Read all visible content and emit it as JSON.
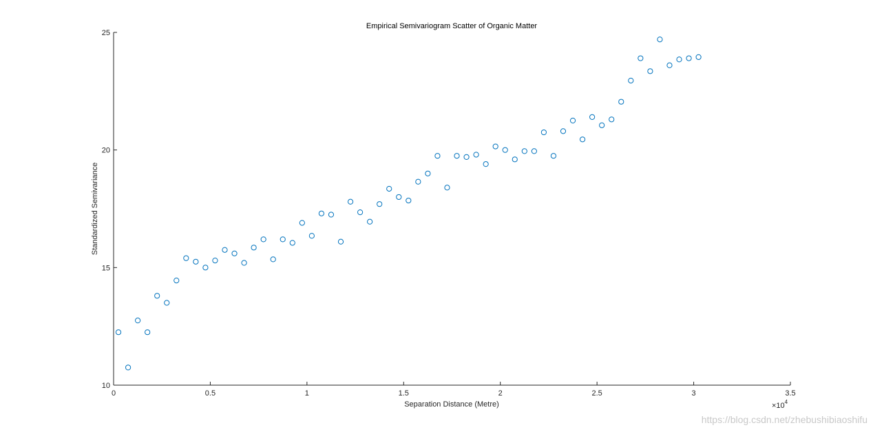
{
  "chart_data": {
    "type": "scatter",
    "title": "Empirical Semivariogram Scatter of Organic Matter",
    "xlabel": "Separation Distance (Metre)",
    "ylabel": "Standardized Semivariance",
    "xlim": [
      0,
      35000
    ],
    "ylim": [
      10,
      25
    ],
    "x_ticks": [
      0,
      5000,
      10000,
      15000,
      20000,
      25000,
      30000,
      35000
    ],
    "x_tick_labels": [
      "0",
      "0.5",
      "1",
      "1.5",
      "2",
      "2.5",
      "3",
      "3.5"
    ],
    "x_exponent_base": "×10",
    "x_exponent_power": "4",
    "y_ticks": [
      10,
      15,
      20,
      25
    ],
    "y_tick_labels": [
      "10",
      "15",
      "20",
      "25"
    ],
    "grid": false,
    "marker": "open-circle",
    "marker_color": "#0072bd",
    "axis_color": "#262626",
    "x": [
      250,
      750,
      1250,
      1750,
      2250,
      2750,
      3250,
      3750,
      4250,
      4750,
      5250,
      5750,
      6250,
      6750,
      7250,
      7750,
      8250,
      8750,
      9250,
      9750,
      10250,
      10750,
      11250,
      11750,
      12250,
      12750,
      13250,
      13750,
      14250,
      14750,
      15250,
      15750,
      16250,
      16750,
      17250,
      17750,
      18250,
      18750,
      19250,
      19750,
      20250,
      20750,
      21250,
      21750,
      22250,
      22750,
      23250,
      23750,
      24250,
      24750,
      25250,
      25750,
      26250,
      26750,
      27250,
      27750,
      28250,
      28750,
      29250,
      29750,
      30250
    ],
    "y": [
      12.25,
      10.75,
      12.75,
      12.25,
      13.8,
      13.5,
      14.45,
      15.4,
      15.25,
      15.0,
      15.3,
      15.75,
      15.6,
      15.2,
      15.85,
      16.2,
      15.35,
      16.2,
      16.05,
      16.9,
      16.35,
      17.3,
      17.25,
      16.1,
      17.8,
      17.35,
      16.95,
      17.7,
      18.35,
      18.0,
      17.85,
      18.65,
      19.0,
      19.75,
      18.4,
      19.75,
      19.7,
      19.8,
      19.4,
      20.15,
      20.0,
      19.6,
      19.95,
      19.95,
      20.75,
      19.75,
      20.8,
      21.25,
      20.45,
      21.4,
      21.05,
      21.3,
      22.05,
      22.95,
      23.9,
      23.35,
      24.7,
      23.6,
      23.85,
      23.9,
      23.95
    ]
  },
  "watermark": "https://blog.csdn.net/zhebushibiaoshifu"
}
